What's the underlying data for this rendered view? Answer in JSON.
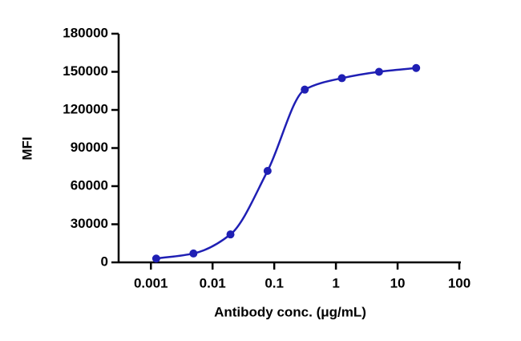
{
  "chart_data": {
    "type": "scatter",
    "xlabel": "Antibody conc. (μg/mL)",
    "ylabel": "MFI",
    "xscale": "log",
    "xlim": [
      0.0003,
      100
    ],
    "xticks": [
      0.001,
      0.01,
      0.1,
      1,
      10,
      100
    ],
    "ylim": [
      0,
      180000
    ],
    "yticks": [
      0,
      30000,
      60000,
      90000,
      120000,
      150000,
      180000
    ],
    "fit_line": true,
    "series": [
      {
        "color": "#1f1fb4",
        "x": [
          0.00122,
          0.0049,
          0.0195,
          0.078,
          0.3125,
          1.25,
          5,
          20
        ],
        "values": [
          3000,
          7000,
          22000,
          72000,
          136000,
          145000,
          150000,
          153000
        ]
      }
    ]
  }
}
